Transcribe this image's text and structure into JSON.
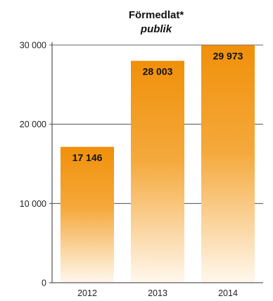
{
  "chart_data": {
    "type": "bar",
    "title": "Förmedlat*",
    "subtitle": "publik",
    "categories": [
      "2012",
      "2013",
      "2014"
    ],
    "values": [
      17146,
      28003,
      29973
    ],
    "value_labels": [
      "17 146",
      "28 003",
      "29 973"
    ],
    "ylim": [
      0,
      30000
    ],
    "yticks": [
      0,
      10000,
      20000,
      30000
    ],
    "ytick_labels": [
      "0",
      "10 000",
      "20 000",
      "30 000"
    ],
    "xlabel": "",
    "ylabel": "",
    "grid": true,
    "legend": "none",
    "bar_color_top": "#f0900a",
    "bar_color_bottom": "#fff8ee"
  }
}
